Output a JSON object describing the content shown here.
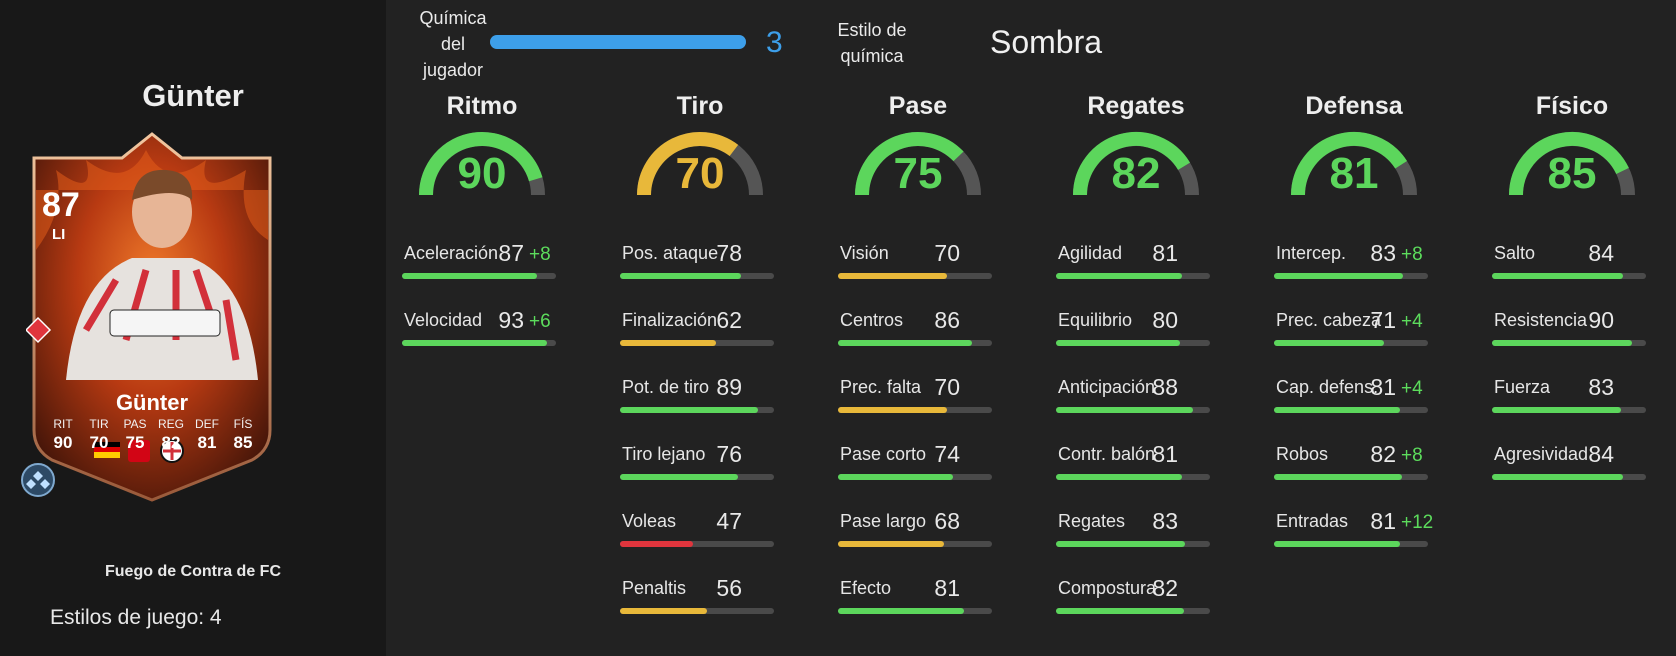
{
  "player": {
    "name": "Günter",
    "overall": "87",
    "position": "LI",
    "promo": "Fuego de Contra de FC",
    "playstyles_text": "Estilos de juego: 4",
    "card_stats": [
      {
        "label": "RIT",
        "value": "90"
      },
      {
        "label": "TIR",
        "value": "70"
      },
      {
        "label": "PAS",
        "value": "75"
      },
      {
        "label": "REG",
        "value": "82"
      },
      {
        "label": "DEF",
        "value": "81"
      },
      {
        "label": "FÍS",
        "value": "85"
      }
    ]
  },
  "chemistry": {
    "label_line1": "Química",
    "label_line2": "del",
    "label_line3": "jugador",
    "value": "3",
    "fill_percent": 100,
    "style_label_line1": "Estilo de",
    "style_label_line2": "química",
    "style_value": "Sombra"
  },
  "colors": {
    "green": "#5cd65c",
    "yellow": "#e8b83a",
    "red": "#e0353d",
    "blue": "#3d9fea",
    "track": "#4a4a4a"
  },
  "categories": [
    {
      "key": "ritmo",
      "name": "Ritmo",
      "value": "90",
      "color": "green",
      "stats": [
        {
          "name": "Aceleración",
          "value": "87",
          "bonus": "+8",
          "color": "green"
        },
        {
          "name": "Velocidad",
          "value": "93",
          "bonus": "+6",
          "color": "green"
        }
      ]
    },
    {
      "key": "tiro",
      "name": "Tiro",
      "value": "70",
      "color": "yellow",
      "stats": [
        {
          "name": "Pos. ataque",
          "value": "78",
          "bonus": "",
          "color": "green"
        },
        {
          "name": "Finalización",
          "value": "62",
          "bonus": "",
          "color": "yellow"
        },
        {
          "name": "Pot. de tiro",
          "value": "89",
          "bonus": "",
          "color": "green"
        },
        {
          "name": "Tiro lejano",
          "value": "76",
          "bonus": "",
          "color": "green"
        },
        {
          "name": "Voleas",
          "value": "47",
          "bonus": "",
          "color": "red"
        },
        {
          "name": "Penaltis",
          "value": "56",
          "bonus": "",
          "color": "yellow"
        }
      ]
    },
    {
      "key": "pase",
      "name": "Pase",
      "value": "75",
      "color": "green",
      "stats": [
        {
          "name": "Visión",
          "value": "70",
          "bonus": "",
          "color": "yellow"
        },
        {
          "name": "Centros",
          "value": "86",
          "bonus": "",
          "color": "green"
        },
        {
          "name": "Prec. falta",
          "value": "70",
          "bonus": "",
          "color": "yellow"
        },
        {
          "name": "Pase corto",
          "value": "74",
          "bonus": "",
          "color": "green"
        },
        {
          "name": "Pase largo",
          "value": "68",
          "bonus": "",
          "color": "yellow"
        },
        {
          "name": "Efecto",
          "value": "81",
          "bonus": "",
          "color": "green"
        }
      ]
    },
    {
      "key": "regates",
      "name": "Regates",
      "value": "82",
      "color": "green",
      "stats": [
        {
          "name": "Agilidad",
          "value": "81",
          "bonus": "",
          "color": "green"
        },
        {
          "name": "Equilibrio",
          "value": "80",
          "bonus": "",
          "color": "green"
        },
        {
          "name": "Anticipación",
          "value": "88",
          "bonus": "",
          "color": "green"
        },
        {
          "name": "Contr. balón",
          "value": "81",
          "bonus": "",
          "color": "green"
        },
        {
          "name": "Regates",
          "value": "83",
          "bonus": "",
          "color": "green"
        },
        {
          "name": "Compostura",
          "value": "82",
          "bonus": "",
          "color": "green"
        }
      ]
    },
    {
      "key": "defensa",
      "name": "Defensa",
      "value": "81",
      "color": "green",
      "stats": [
        {
          "name": "Intercep.",
          "value": "83",
          "bonus": "+8",
          "color": "green"
        },
        {
          "name": "Prec. cabeza",
          "value": "71",
          "bonus": "+4",
          "color": "green"
        },
        {
          "name": "Cap. defens.",
          "value": "81",
          "bonus": "+4",
          "color": "green"
        },
        {
          "name": "Robos",
          "value": "82",
          "bonus": "+8",
          "color": "green"
        },
        {
          "name": "Entradas",
          "value": "81",
          "bonus": "+12",
          "color": "green"
        }
      ]
    },
    {
      "key": "fisico",
      "name": "Físico",
      "value": "85",
      "color": "green",
      "stats": [
        {
          "name": "Salto",
          "value": "84",
          "bonus": "",
          "color": "green"
        },
        {
          "name": "Resistencia",
          "value": "90",
          "bonus": "",
          "color": "green"
        },
        {
          "name": "Fuerza",
          "value": "83",
          "bonus": "",
          "color": "green"
        },
        {
          "name": "Agresividad",
          "value": "84",
          "bonus": "",
          "color": "green"
        }
      ]
    }
  ]
}
